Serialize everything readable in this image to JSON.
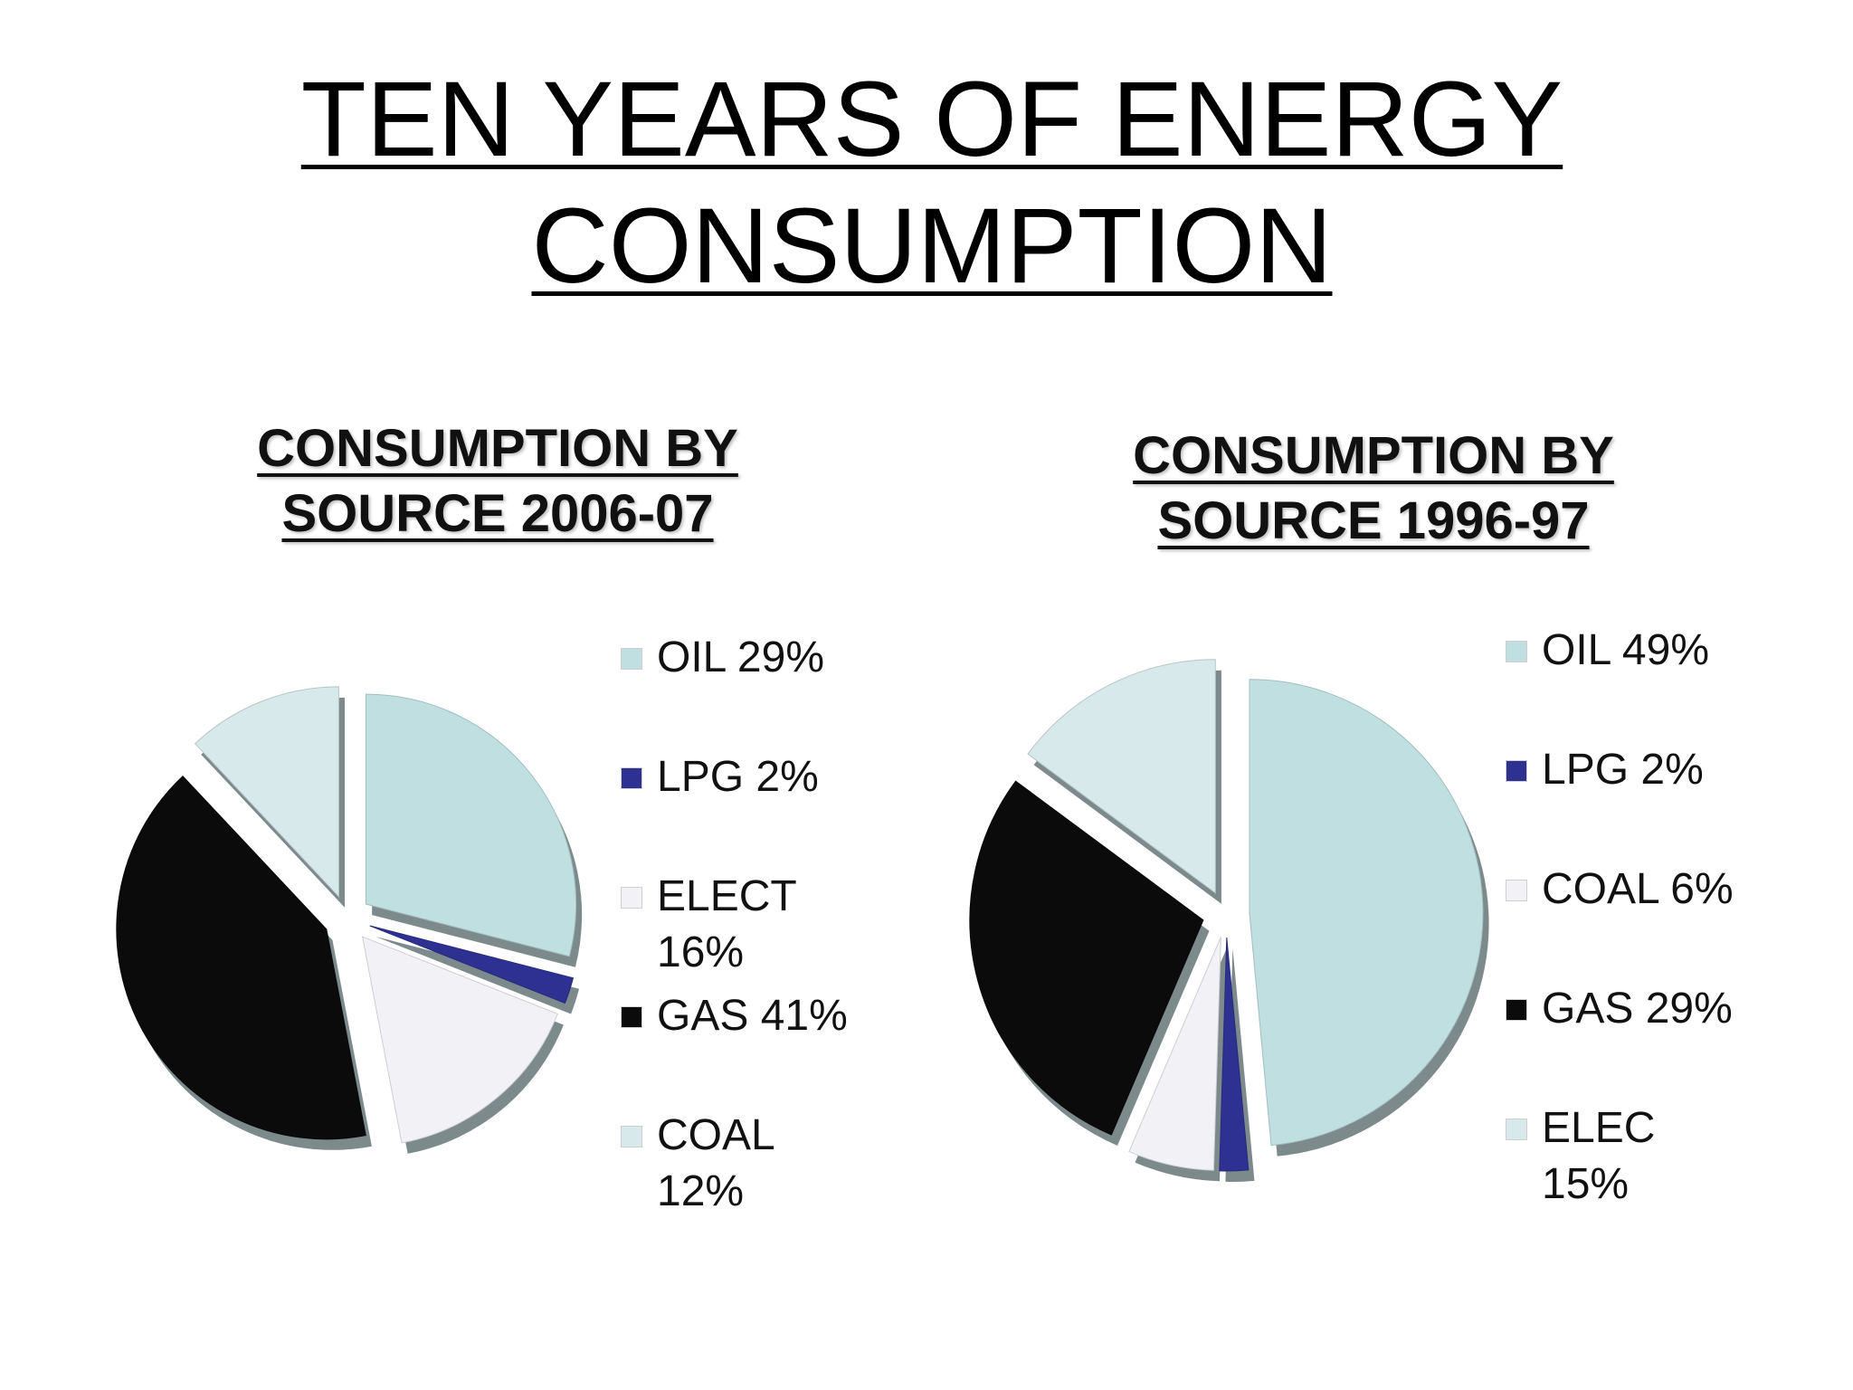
{
  "slide": {
    "title": "TEN YEARS OF ENERGY CONSUMPTION"
  },
  "chart_data": [
    {
      "type": "pie",
      "title": "CONSUMPTION BY SOURCE 2006-07",
      "categories": [
        "OIL",
        "LPG",
        "ELECT",
        "GAS",
        "COAL"
      ],
      "values": [
        29,
        2,
        16,
        41,
        12
      ],
      "legend": [
        "OIL 29%",
        "LPG 2%",
        " ELECT\n16%",
        "GAS 41%",
        "COAL\n12%"
      ],
      "colors": [
        "#bfdfe1",
        "#2e3192",
        "#f2f2f6",
        "#0b0b0b",
        "#d7e9ea"
      ],
      "legend_position": "right",
      "exploded": true
    },
    {
      "type": "pie",
      "title": "CONSUMPTION BY SOURCE 1996-97",
      "categories": [
        "OIL",
        "LPG",
        "COAL",
        "GAS",
        "ELEC"
      ],
      "values": [
        49,
        2,
        6,
        29,
        15
      ],
      "legend": [
        "OIL 49%",
        "LPG 2%",
        "COAL 6%",
        "GAS 29%",
        "ELEC\n15%"
      ],
      "colors": [
        "#bfdfe1",
        "#2e3192",
        "#f2f2f6",
        "#0b0b0b",
        "#d7e9ea"
      ],
      "legend_position": "right",
      "exploded": true
    }
  ]
}
